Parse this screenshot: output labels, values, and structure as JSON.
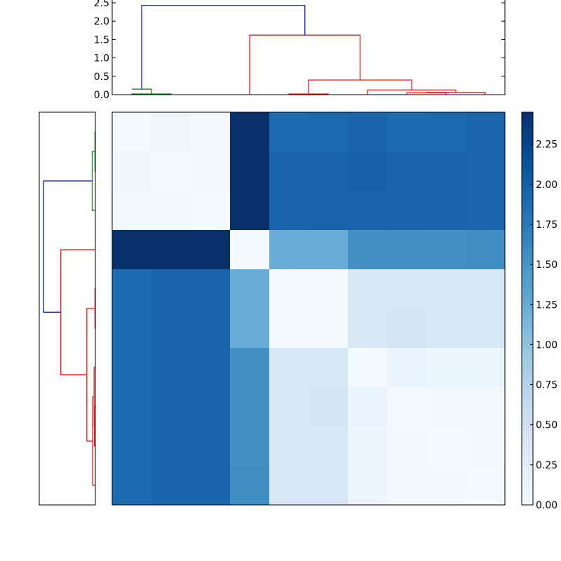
{
  "chart_data": {
    "type": "heatmap",
    "title": "",
    "n": 10,
    "colormap": [
      "#f7fbff",
      "#deebf7",
      "#c6dbef",
      "#9ecae1",
      "#6baed6",
      "#4292c6",
      "#2171b5",
      "#08519c",
      "#08306b"
    ],
    "values": [
      [
        0.02,
        0.1,
        0.07,
        2.45,
        1.9,
        1.92,
        1.95,
        1.9,
        1.92,
        1.94
      ],
      [
        0.1,
        0.02,
        0.05,
        2.45,
        1.95,
        1.97,
        1.98,
        1.95,
        1.96,
        1.94
      ],
      [
        0.07,
        0.05,
        0.02,
        2.45,
        1.95,
        1.96,
        1.97,
        1.95,
        1.96,
        1.94
      ],
      [
        2.45,
        2.45,
        2.45,
        0.02,
        1.25,
        1.25,
        1.55,
        1.55,
        1.55,
        1.58
      ],
      [
        1.9,
        1.95,
        1.95,
        1.25,
        0.02,
        0.02,
        0.4,
        0.4,
        0.4,
        0.4
      ],
      [
        1.9,
        1.95,
        1.95,
        1.25,
        0.02,
        0.02,
        0.4,
        0.42,
        0.4,
        0.4
      ],
      [
        1.9,
        1.95,
        1.95,
        1.55,
        0.4,
        0.4,
        0.02,
        0.15,
        0.12,
        0.13
      ],
      [
        1.9,
        1.95,
        1.95,
        1.55,
        0.4,
        0.42,
        0.15,
        0.02,
        0.08,
        0.07
      ],
      [
        1.9,
        1.95,
        1.95,
        1.55,
        0.4,
        0.4,
        0.12,
        0.08,
        0.02,
        0.06
      ],
      [
        1.9,
        1.95,
        1.95,
        1.58,
        0.4,
        0.4,
        0.13,
        0.07,
        0.06,
        0.02
      ]
    ],
    "colorbar": {
      "range": [
        0,
        2.45
      ],
      "ticks": [
        0,
        0.25,
        0.5,
        0.75,
        1.0,
        1.25,
        1.5,
        1.75,
        2.0,
        2.25
      ],
      "tick_labels": [
        "0.00",
        "0.25",
        "0.50",
        "0.75",
        "1.00",
        "1.25",
        "1.50",
        "1.75",
        "2.00",
        "2.25"
      ]
    },
    "top_dendrogram": {
      "ylim": [
        0,
        2.5
      ],
      "ticks": [
        0,
        0.5,
        1.0,
        1.5,
        2.0,
        2.5
      ],
      "tick_labels": [
        "0.0",
        "0.5",
        "1.0",
        "1.5",
        "2.0",
        "2.5"
      ],
      "links": [
        {
          "left": 0.5,
          "right": 1.5,
          "left_height": 0,
          "right_height": 0,
          "height": 0.02,
          "color": "#008000"
        },
        {
          "left": 0.5,
          "right": 1.0,
          "left_height": 0.15,
          "right_height": 0.02,
          "height": 0.15,
          "color": "#008000"
        },
        {
          "left": 4.5,
          "right": 5.5,
          "left_height": 0,
          "right_height": 0,
          "height": 0.02,
          "color": "#ff0000"
        },
        {
          "left": 7.5,
          "right": 8.5,
          "left_height": 0,
          "right_height": 0,
          "height": 0.05,
          "color": "#ff0000"
        },
        {
          "left": 8.0,
          "right": 9.5,
          "left_height": 0.05,
          "right_height": 0,
          "height": 0.06,
          "color": "#ff0000"
        },
        {
          "left": 6.5,
          "right": 8.75,
          "left_height": 0,
          "right_height": 0.06,
          "height": 0.13,
          "color": "#ff0000"
        },
        {
          "left": 5.0,
          "right": 7.625,
          "left_height": 0.02,
          "right_height": 0.13,
          "height": 0.4,
          "color": "#ff0000"
        },
        {
          "left": 3.5,
          "right": 6.3125,
          "left_height": 0,
          "right_height": 0.4,
          "height": 1.62,
          "color": "#ff0000"
        },
        {
          "left": 0.75,
          "right": 4.90625,
          "left_height": 0.15,
          "right_height": 1.62,
          "height": 2.43,
          "color": "#0000ff"
        }
      ]
    },
    "left_dendrogram": {
      "links": [
        {
          "top": 0.5,
          "bottom": 1.5,
          "left_value": 0.15,
          "height": 0.02,
          "color": "#008000",
          "top_value": 0,
          "bottom_value": 0
        },
        {
          "top": 1.0,
          "bottom": 2.5,
          "height": 0.15,
          "color": "#008000",
          "top_value": 0.02,
          "bottom_value": 0
        },
        {
          "top": 4.5,
          "bottom": 5.5,
          "height": 0.02,
          "color": "#ff0000",
          "top_value": 0,
          "bottom_value": 0
        },
        {
          "top": 7.5,
          "bottom": 8.5,
          "height": 0.05,
          "color": "#ff0000",
          "top_value": 0,
          "bottom_value": 0
        },
        {
          "top": 6.5,
          "bottom": 8.0,
          "height": 0.06,
          "color": "#ff0000",
          "top_value": 0,
          "bottom_value": 0.05
        },
        {
          "top": 7.25,
          "bottom": 9.5,
          "height": 0.13,
          "color": "#ff0000",
          "top_value": 0.06,
          "bottom_value": 0
        },
        {
          "top": 5.0,
          "bottom": 8.375,
          "height": 0.4,
          "color": "#ff0000",
          "top_value": 0.02,
          "bottom_value": 0.13
        },
        {
          "top": 3.5,
          "bottom": 6.6875,
          "height": 1.62,
          "color": "#ff0000",
          "top_value": 0,
          "bottom_value": 0.4
        },
        {
          "top": 1.75,
          "bottom": 5.09375,
          "height": 2.43,
          "color": "#0000ff",
          "top_value": 0.15,
          "bottom_value": 1.62
        }
      ],
      "xlim": [
        0,
        2.5
      ]
    }
  }
}
